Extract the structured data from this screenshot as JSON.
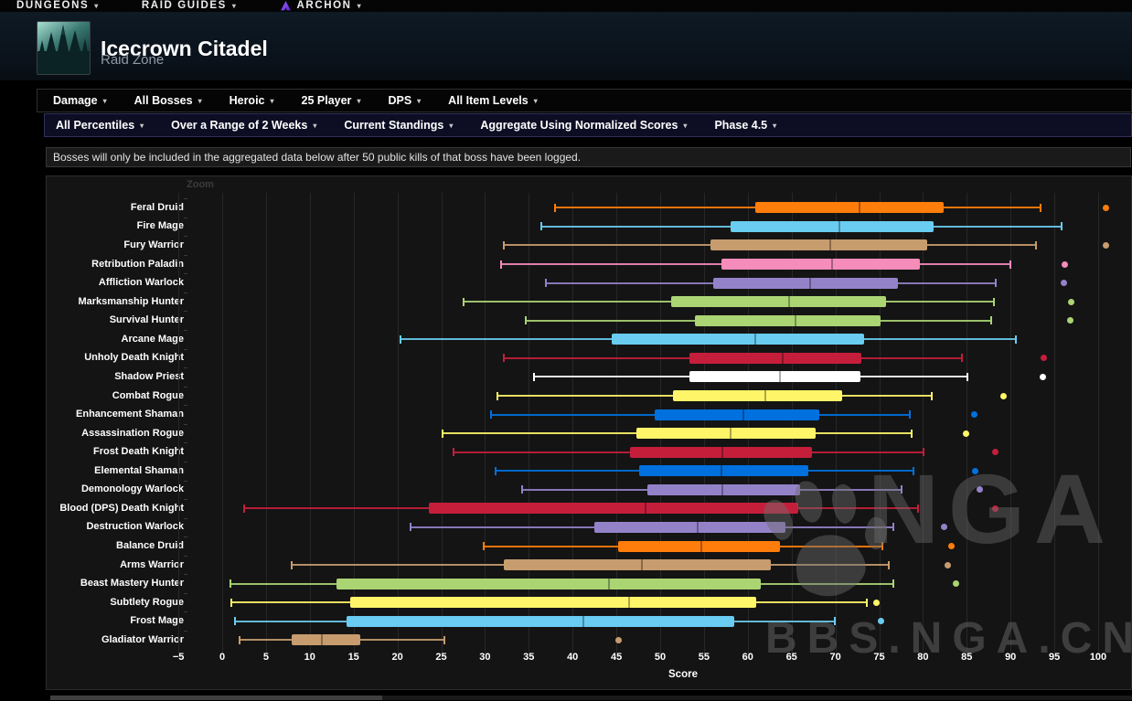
{
  "nav": {
    "items": [
      {
        "label": "DUNGEONS",
        "has_icon": false
      },
      {
        "label": "RAID GUIDES",
        "has_icon": false
      },
      {
        "label": "ARCHON",
        "has_icon": true
      }
    ]
  },
  "header": {
    "title": "Icecrown Citadel",
    "subtitle": "Raid Zone"
  },
  "toolbar_primary": {
    "items": [
      "Damage",
      "All Bosses",
      "Heroic",
      "25 Player",
      "DPS",
      "All Item Levels"
    ]
  },
  "toolbar_secondary": {
    "items": [
      "All Percentiles",
      "Over a Range of 2 Weeks",
      "Current Standings",
      "Aggregate Using Normalized Scores",
      "Phase 4.5"
    ]
  },
  "notice": "Bosses will only be included in the aggregated data below after 50 public kills of that boss have been logged.",
  "watermark": {
    "big": "NGA",
    "small": "BBS.NGA.CN"
  },
  "colors": {
    "druid": "#FF7D0A",
    "mage": "#69CCF0",
    "warrior": "#C79C6E",
    "paladin": "#F58CBA",
    "warlock": "#9482C9",
    "hunter": "#ABD473",
    "death_knight": "#C41E3B",
    "priest": "#FFFFFF",
    "rogue": "#FFF569",
    "shaman": "#0070DE",
    "toolbar_secondary_bg": "#0d0d24",
    "panel_bg": "#141414",
    "grid": "#272727"
  },
  "chart_data": {
    "type": "boxplot",
    "orientation": "horizontal",
    "zoom_label": "Zoom",
    "xlabel": "Score",
    "xlim": [
      -5,
      102
    ],
    "x_ticks": [
      -5,
      0,
      5,
      10,
      15,
      20,
      25,
      30,
      35,
      40,
      45,
      50,
      55,
      60,
      65,
      70,
      75,
      80,
      85,
      90,
      95,
      100
    ],
    "grid": true,
    "legend_position": "none",
    "categories": [
      "Feral Druid",
      "Fire Mage",
      "Fury Warrior",
      "Retribution Paladin",
      "Affliction Warlock",
      "Marksmanship Hunter",
      "Survival Hunter",
      "Arcane Mage",
      "Unholy Death Knight",
      "Shadow Priest",
      "Combat Rogue",
      "Enhancement Shaman",
      "Assassination Rogue",
      "Frost Death Knight",
      "Elemental Shaman",
      "Demonology Warlock",
      "Blood (DPS) Death Knight",
      "Destruction Warlock",
      "Balance Druid",
      "Arms Warrior",
      "Beast Mastery Hunter",
      "Subtlety Rogue",
      "Frost Mage",
      "Gladiator Warrior"
    ],
    "series": [
      {
        "name": "Feral Druid",
        "color": "#FF7D0A",
        "low": 38.0,
        "q1": 60.8,
        "median": 72.8,
        "q3": 82.3,
        "high": 93.4,
        "outliers": [
          100.9
        ]
      },
      {
        "name": "Fire Mage",
        "color": "#69CCF0",
        "low": 36.4,
        "q1": 58.0,
        "median": 70.5,
        "q3": 81.2,
        "high": 95.8,
        "outliers": []
      },
      {
        "name": "Fury Warrior",
        "color": "#C79C6E",
        "low": 32.1,
        "q1": 55.7,
        "median": 69.4,
        "q3": 80.5,
        "high": 92.9,
        "outliers": [
          100.9
        ]
      },
      {
        "name": "Retribution Paladin",
        "color": "#F58CBA",
        "low": 31.8,
        "q1": 57.0,
        "median": 69.6,
        "q3": 79.6,
        "high": 90.0,
        "outliers": [
          96.2
        ]
      },
      {
        "name": "Affliction Warlock",
        "color": "#9482C9",
        "low": 36.9,
        "q1": 56.1,
        "median": 67.1,
        "q3": 77.2,
        "high": 88.3,
        "outliers": [
          96.1
        ]
      },
      {
        "name": "Marksmanship Hunter",
        "color": "#ABD473",
        "low": 27.6,
        "q1": 51.2,
        "median": 64.7,
        "q3": 75.8,
        "high": 88.1,
        "outliers": [
          96.9
        ]
      },
      {
        "name": "Survival Hunter",
        "color": "#ABD473",
        "low": 34.7,
        "q1": 54.0,
        "median": 65.4,
        "q3": 75.2,
        "high": 87.8,
        "outliers": [
          96.8
        ]
      },
      {
        "name": "Arcane Mage",
        "color": "#69CCF0",
        "low": 20.4,
        "q1": 44.5,
        "median": 60.8,
        "q3": 73.3,
        "high": 90.6,
        "outliers": []
      },
      {
        "name": "Unholy Death Knight",
        "color": "#C41E3B",
        "low": 32.1,
        "q1": 53.3,
        "median": 64.0,
        "q3": 73.0,
        "high": 84.4,
        "outliers": [
          93.8
        ]
      },
      {
        "name": "Shadow Priest",
        "color": "#FFFFFF",
        "low": 35.6,
        "q1": 53.3,
        "median": 63.7,
        "q3": 72.9,
        "high": 85.1,
        "outliers": [
          93.7
        ]
      },
      {
        "name": "Combat Rogue",
        "color": "#FFF569",
        "low": 31.4,
        "q1": 51.5,
        "median": 62.0,
        "q3": 70.8,
        "high": 81.0,
        "outliers": [
          89.2
        ]
      },
      {
        "name": "Enhancement Shaman",
        "color": "#0070DE",
        "low": 30.7,
        "q1": 49.4,
        "median": 59.5,
        "q3": 68.2,
        "high": 78.5,
        "outliers": [
          85.8
        ]
      },
      {
        "name": "Assassination Rogue",
        "color": "#FFF569",
        "low": 25.2,
        "q1": 47.3,
        "median": 58.0,
        "q3": 67.8,
        "high": 78.7,
        "outliers": [
          84.9
        ]
      },
      {
        "name": "Frost Death Knight",
        "color": "#C41E3B",
        "low": 26.4,
        "q1": 46.6,
        "median": 57.1,
        "q3": 67.3,
        "high": 80.1,
        "outliers": [
          88.2
        ]
      },
      {
        "name": "Elemental Shaman",
        "color": "#0070DE",
        "low": 31.2,
        "q1": 47.6,
        "median": 57.0,
        "q3": 66.9,
        "high": 78.9,
        "outliers": [
          86.0
        ]
      },
      {
        "name": "Demonology Warlock",
        "color": "#9482C9",
        "low": 34.2,
        "q1": 48.5,
        "median": 57.1,
        "q3": 66.0,
        "high": 77.6,
        "outliers": [
          86.5
        ]
      },
      {
        "name": "Blood (DPS) Death Knight",
        "color": "#C41E3B",
        "low": 2.5,
        "q1": 23.6,
        "median": 48.3,
        "q3": 65.8,
        "high": 79.4,
        "outliers": [
          88.2
        ]
      },
      {
        "name": "Destruction Warlock",
        "color": "#9482C9",
        "low": 21.5,
        "q1": 42.5,
        "median": 54.3,
        "q3": 64.3,
        "high": 76.6,
        "outliers": [
          82.4
        ]
      },
      {
        "name": "Balance Druid",
        "color": "#FF7D0A",
        "low": 29.8,
        "q1": 45.2,
        "median": 54.7,
        "q3": 63.7,
        "high": 75.4,
        "outliers": [
          83.2
        ]
      },
      {
        "name": "Arms Warrior",
        "color": "#C79C6E",
        "low": 7.9,
        "q1": 32.1,
        "median": 47.9,
        "q3": 62.6,
        "high": 76.1,
        "outliers": [
          82.8
        ]
      },
      {
        "name": "Beast Mastery Hunter",
        "color": "#ABD473",
        "low": 0.9,
        "q1": 13.0,
        "median": 44.1,
        "q3": 61.5,
        "high": 76.6,
        "outliers": [
          83.8
        ]
      },
      {
        "name": "Subtlety Rogue",
        "color": "#FFF569",
        "low": 1.0,
        "q1": 14.6,
        "median": 46.4,
        "q3": 61.0,
        "high": 73.6,
        "outliers": [
          74.7
        ]
      },
      {
        "name": "Frost Mage",
        "color": "#69CCF0",
        "low": 1.5,
        "q1": 14.2,
        "median": 41.2,
        "q3": 58.5,
        "high": 69.9,
        "outliers": [
          75.2
        ]
      },
      {
        "name": "Gladiator Warrior",
        "color": "#C79C6E",
        "low": 2.0,
        "q1": 7.9,
        "median": 11.4,
        "q3": 15.8,
        "high": 25.4,
        "outliers": [
          45.2
        ]
      }
    ]
  }
}
